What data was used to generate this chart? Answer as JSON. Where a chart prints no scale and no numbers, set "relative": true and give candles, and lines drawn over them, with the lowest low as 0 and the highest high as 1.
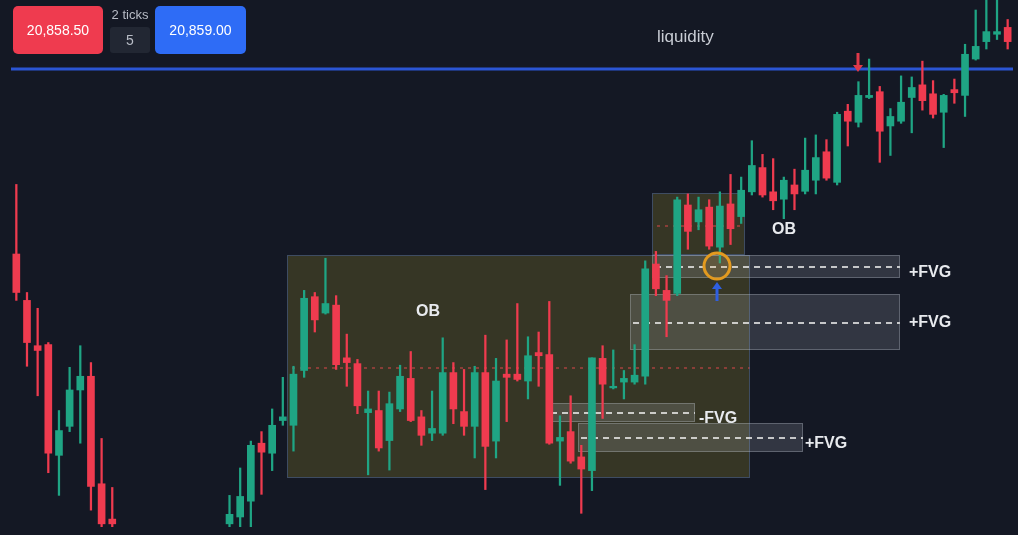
{
  "chart_data": {
    "type": "candlestick",
    "relative": true,
    "categories": [
      null,
      null,
      null,
      null,
      null,
      null,
      null,
      null,
      null,
      null,
      null,
      null,
      null,
      null,
      null,
      null,
      null,
      null,
      null,
      null,
      null,
      null,
      null,
      null,
      null,
      null,
      null,
      null,
      null,
      null,
      null,
      null,
      null,
      null,
      null,
      null,
      null,
      null,
      null,
      null,
      null,
      null,
      null,
      null,
      null,
      null,
      null,
      null,
      null,
      null,
      null,
      null,
      null,
      null,
      null,
      null,
      null,
      null,
      null,
      null,
      null,
      null,
      null,
      null,
      null,
      null,
      null,
      null,
      null,
      null,
      null,
      null,
      null,
      null,
      null,
      null,
      null,
      null,
      null,
      null,
      null,
      null,
      null,
      null,
      null,
      null,
      null,
      null,
      null,
      null,
      null,
      null,
      null,
      null
    ],
    "ohlc": [
      [
        0.518,
        0.65,
        0.43,
        0.445
      ],
      [
        0.43,
        0.445,
        0.305,
        0.35
      ],
      [
        0.344,
        0.415,
        0.249,
        0.335
      ],
      [
        0.346,
        0.35,
        0.103,
        0.14
      ],
      [
        0.136,
        0.221,
        0.06,
        0.183
      ],
      [
        0.191,
        0.303,
        0.181,
        0.26
      ],
      [
        0.26,
        0.344,
        0.159,
        0.286
      ],
      [
        0.286,
        0.312,
        0.032,
        0.077
      ],
      [
        0.082,
        0.168,
        0,
        0.006
      ],
      [
        0.015,
        0.075,
        0,
        0.006
      ],
      null,
      null,
      null,
      null,
      null,
      null,
      null,
      null,
      null,
      null,
      [
        0.006,
        0.06,
        0,
        0.024
      ],
      [
        0.019,
        0.112,
        0,
        0.058
      ],
      [
        0.049,
        0.163,
        0,
        0.155
      ],
      [
        0.159,
        0.181,
        0.062,
        0.142
      ],
      [
        0.14,
        0.224,
        0.107,
        0.193
      ],
      [
        0.202,
        0.284,
        0.193,
        0.209
      ],
      [
        0.193,
        0.305,
        0.144,
        0.29
      ],
      [
        0.297,
        0.449,
        0.284,
        0.434
      ],
      [
        0.437,
        0.445,
        0.37,
        0.393
      ],
      [
        0.406,
        0.51,
        0.404,
        0.424
      ],
      [
        0.421,
        0.439,
        0.299,
        0.308
      ],
      [
        0.321,
        0.366,
        0.267,
        0.312
      ],
      [
        0.31,
        0.318,
        0.215,
        0.23
      ],
      [
        0.217,
        0.258,
        0.099,
        0.224
      ],
      [
        0.221,
        0.258,
        0.144,
        0.15
      ],
      [
        0.164,
        0.256,
        0.108,
        0.234
      ],
      [
        0.224,
        0.307,
        0.219,
        0.286
      ],
      [
        0.282,
        0.333,
        0.2,
        0.202
      ],
      [
        0.209,
        0.221,
        0.155,
        0.174
      ],
      [
        0.178,
        0.258,
        0.164,
        0.187
      ],
      [
        0.178,
        0.359,
        0.174,
        0.293
      ],
      [
        0.293,
        0.312,
        0.196,
        0.224
      ],
      [
        0.219,
        0.299,
        0.174,
        0.191
      ],
      [
        0.191,
        0.305,
        0.131,
        0.293
      ],
      [
        0.293,
        0.364,
        0.071,
        0.153
      ],
      [
        0.163,
        0.32,
        0.131,
        0.277
      ],
      [
        0.29,
        0.355,
        0.2,
        0.284
      ],
      [
        0.29,
        0.424,
        0.277,
        0.28
      ],
      [
        0.277,
        0.361,
        0.243,
        0.325
      ],
      [
        0.331,
        0.37,
        0.267,
        0.325
      ],
      [
        0.327,
        0.428,
        0.157,
        0.159
      ],
      [
        0.163,
        0.211,
        0.079,
        0.17
      ],
      [
        0.181,
        0.249,
        0.121,
        0.125
      ],
      [
        0.133,
        0.155,
        0.026,
        0.11
      ],
      [
        0.107,
        0.321,
        0.069,
        0.321
      ],
      [
        0.32,
        0.344,
        0.206,
        0.271
      ],
      [
        0.264,
        0.336,
        0.262,
        0.267
      ],
      [
        0.275,
        0.297,
        0.243,
        0.282
      ],
      [
        0.275,
        0.346,
        0.271,
        0.288
      ],
      [
        0.286,
        0.505,
        0.271,
        0.49
      ],
      [
        0.499,
        0.523,
        0.439,
        0.452
      ],
      [
        0.449,
        0.477,
        0.361,
        0.43
      ],
      [
        0.443,
        0.626,
        0.439,
        0.621
      ],
      [
        0.611,
        0.632,
        0.527,
        0.561
      ],
      [
        0.579,
        0.626,
        0.564,
        0.602
      ],
      [
        0.607,
        0.621,
        0.527,
        0.533
      ],
      [
        0.531,
        0.636,
        0.501,
        0.609
      ],
      [
        0.613,
        0.669,
        0.536,
        0.566
      ],
      [
        0.589,
        0.664,
        0.576,
        0.639
      ],
      [
        0.636,
        0.733,
        0.63,
        0.686
      ],
      [
        0.682,
        0.707,
        0.626,
        0.63
      ],
      [
        0.636,
        0.699,
        0.602,
        0.619
      ],
      [
        0.622,
        0.664,
        0.585,
        0.658
      ],
      [
        0.649,
        0.679,
        0.602,
        0.632
      ],
      [
        0.637,
        0.738,
        0.632,
        0.677
      ],
      [
        0.658,
        0.744,
        0.632,
        0.701
      ],
      [
        0.712,
        0.735,
        0.658,
        0.662
      ],
      [
        0.654,
        0.787,
        0.649,
        0.783
      ],
      [
        0.789,
        0.802,
        0.723,
        0.77
      ],
      [
        0.768,
        0.845,
        0.759,
        0.819
      ],
      [
        0.815,
        0.888,
        0.813,
        0.819
      ],
      [
        0.826,
        0.836,
        0.692,
        0.751
      ],
      [
        0.761,
        0.794,
        0.705,
        0.779
      ],
      [
        0.77,
        0.856,
        0.766,
        0.806
      ],
      [
        0.815,
        0.854,
        0.748,
        0.834
      ],
      [
        0.839,
        0.884,
        0.791,
        0.809
      ],
      [
        0.822,
        0.847,
        0.776,
        0.783
      ],
      [
        0.787,
        0.821,
        0.72,
        0.819
      ],
      [
        0.83,
        0.85,
        0.804,
        0.824
      ],
      [
        0.819,
        0.916,
        0.779,
        0.897
      ],
      [
        0.888,
        0.981,
        0.886,
        0.912
      ],
      [
        0.921,
        1,
        0.907,
        0.94
      ],
      [
        0.935,
        1,
        0.925,
        0.94
      ],
      [
        0.948,
        0.963,
        0.907,
        0.921
      ]
    ],
    "colors": [
      "#ef3b4f",
      "#ef3b4f",
      "#ef3b4f",
      "#ef3b4f",
      "#1fa584",
      "#1fa584",
      "#1fa584",
      "#ef3b4f",
      "#ef3b4f",
      "#ef3b4f",
      null,
      null,
      null,
      null,
      null,
      null,
      null,
      null,
      null,
      null,
      "#1fa584",
      "#1fa584",
      "#1fa584",
      "#ef3b4f",
      "#1fa584",
      "#1fa584",
      "#1fa584",
      "#1fa584",
      "#ef3b4f",
      "#1fa584",
      "#ef3b4f",
      "#ef3b4f",
      "#ef3b4f",
      "#1fa584",
      "#ef3b4f",
      "#1fa584",
      "#1fa584",
      "#ef3b4f",
      "#ef3b4f",
      "#1fa584",
      "#1fa584",
      "#ef3b4f",
      "#ef3b4f",
      "#1fa584",
      "#ef3b4f",
      "#1fa584",
      "#ef3b4f",
      "#ef3b4f",
      "#1fa584",
      "#ef3b4f",
      "#ef3b4f",
      "#1fa584",
      "#ef3b4f",
      "#ef3b4f",
      "#1fa584",
      "#ef3b4f",
      "#1fa584",
      "#1fa584",
      "#1fa584",
      "#1fa584",
      "#ef3b4f",
      "#ef3b4f",
      "#1fa584",
      "#ef3b4f",
      "#1fa584",
      "#ef3b4f",
      "#1fa584",
      "#ef3b4f",
      "#1fa584",
      "#1fa584",
      "#ef3b4f",
      "#ef3b4f",
      "#1fa584",
      "#ef3b4f",
      "#1fa584",
      "#1fa584",
      "#ef3b4f",
      "#1fa584",
      "#ef3b4f",
      "#1fa584",
      "#1fa584",
      "#ef3b4f",
      "#1fa584",
      "#1fa584",
      "#1fa584",
      "#ef3b4f",
      "#ef3b4f",
      "#1fa584",
      "#ef3b4f",
      "#1fa584",
      "#1fa584",
      "#1fa584",
      "#1fa584",
      "#ef3b4f"
    ],
    "ref_lines": [
      {
        "axis": "y",
        "value": 0.869,
        "label": "liquidity",
        "color": "#2b55d4"
      }
    ],
    "annotations": [
      "20,858.50",
      "2 ticks",
      "5",
      "20,859.00",
      "OB",
      "+FVG",
      "OB",
      "+FVG",
      "-FVG",
      "+FVG"
    ]
  }
}
